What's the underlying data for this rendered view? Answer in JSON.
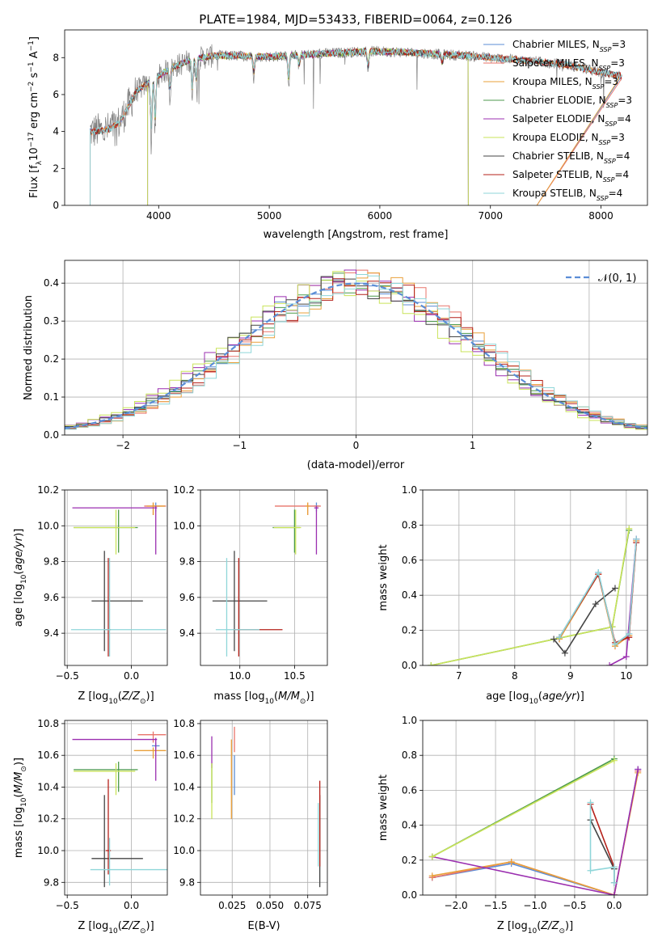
{
  "figure_title": "PLATE=1984, MJD=53433, FIBERID=0064, z=0.126",
  "colors": {
    "Chabrier MILES": "#5b8dd6",
    "Salpeter MILES": "#e8736a",
    "Kroupa MILES": "#e9a03a",
    "Chabrier ELODIE": "#4c9a4c",
    "Salpeter ELODIE": "#9b2fb0",
    "Kroupa ELODIE": "#c9e35a",
    "Chabrier STELIB": "#444444",
    "Salpeter STELIB": "#b5211a",
    "Kroupa STELIB": "#8fd6d9",
    "data": "#808080",
    "gauss": "#5b8dd6"
  },
  "chart_data": [
    {
      "type": "line",
      "title": "PLATE=1984, MJD=53433, FIBERID=0064, z=0.126",
      "xlabel": "wavelength [Angstrom, rest frame]",
      "ylabel": "Flux [f_λ 10^-17 erg cm^-2 s^-1 A^-1]",
      "xlim": [
        3150,
        8420
      ],
      "ylim": [
        0,
        9.5
      ],
      "xticks": [
        "4000",
        "5000",
        "6000",
        "7000",
        "8000"
      ],
      "yticks": [
        "0",
        "2",
        "4",
        "6",
        "8"
      ],
      "legend": [
        {
          "name": "Chabrier MILES",
          "nssp": "3"
        },
        {
          "name": "Salpeter MILES",
          "nssp": "3"
        },
        {
          "name": "Kroupa MILES",
          "nssp": "3"
        },
        {
          "name": "Chabrier ELODIE",
          "nssp": "3"
        },
        {
          "name": "Salpeter ELODIE",
          "nssp": "4"
        },
        {
          "name": "Kroupa ELODIE",
          "nssp": "3"
        },
        {
          "name": "Chabrier STELIB",
          "nssp": "4"
        },
        {
          "name": "Salpeter STELIB",
          "nssp": "4"
        },
        {
          "name": "Kroupa STELIB",
          "nssp": "4"
        }
      ],
      "continuum": {
        "x": [
          3400,
          3550,
          3650,
          3800,
          3950,
          4100,
          4300,
          4500,
          4700,
          5000,
          5300,
          5600,
          5900,
          6200,
          6500,
          6800,
          7100,
          7400,
          7700,
          8000,
          8200
        ],
        "y": [
          4.0,
          4.1,
          4.5,
          6.2,
          6.8,
          7.4,
          7.9,
          8.1,
          8.1,
          8.05,
          8.15,
          8.25,
          8.35,
          8.3,
          8.2,
          8.1,
          7.95,
          7.8,
          7.6,
          7.2,
          7.0
        ]
      },
      "absorption_lines": [
        {
          "x": 3933,
          "depth": 3.5
        },
        {
          "x": 3968,
          "depth": 3.0
        },
        {
          "x": 4102,
          "depth": 1.5
        },
        {
          "x": 4304,
          "depth": 2.2
        },
        {
          "x": 4340,
          "depth": 1.5
        },
        {
          "x": 4861,
          "depth": 1.2
        },
        {
          "x": 5175,
          "depth": 1.8
        },
        {
          "x": 5270,
          "depth": 0.7
        },
        {
          "x": 5893,
          "depth": 1.1
        },
        {
          "x": 6563,
          "depth": 0.6
        }
      ]
    },
    {
      "type": "bar",
      "xlabel": "(data-model)/error",
      "ylabel": "Normed distribution",
      "xlim": [
        -2.5,
        2.5
      ],
      "ylim": [
        0,
        0.46
      ],
      "xticks": [
        "−2",
        "−1",
        "0",
        "1",
        "2"
      ],
      "yticks": [
        "0.0",
        "0.1",
        "0.2",
        "0.3",
        "0.4"
      ],
      "legend_label": "𝒩(0, 1)",
      "bin_width": 0.1,
      "gaussian": {
        "mu": 0,
        "sigma": 1
      }
    },
    {
      "type": "scatter",
      "xlabel": "Z [log10(Z/Z⊙)]",
      "ylabel": "age  [log10(age/yr)]",
      "xlim": [
        -0.52,
        0.28
      ],
      "ylim": [
        9.22,
        10.2
      ],
      "xticks": [
        "−0.5",
        "0.0"
      ],
      "yticks": [
        "9.4",
        "9.6",
        "9.8",
        "10.0",
        "10.2"
      ],
      "points": [
        {
          "model": "Chabrier MILES",
          "x": 0.19,
          "xerr": [
            0.03,
            0.03
          ],
          "y": 10.11,
          "yerr": [
            0.03,
            0.02
          ]
        },
        {
          "model": "Salpeter MILES",
          "x": 0.17,
          "xerr": [
            0.07,
            0.1
          ],
          "y": 10.11,
          "yerr": [
            0.05,
            0.02
          ]
        },
        {
          "model": "Kroupa MILES",
          "x": 0.17,
          "xerr": [
            0.05,
            0.09
          ],
          "y": 10.11,
          "yerr": [
            0.05,
            0.02
          ]
        },
        {
          "model": "Chabrier ELODIE",
          "x": -0.1,
          "xerr": [
            0.35,
            0.15
          ],
          "y": 9.99,
          "yerr": [
            0.14,
            0.1
          ]
        },
        {
          "model": "Salpeter ELODIE",
          "x": 0.19,
          "xerr": [
            0.65,
            0.01
          ],
          "y": 10.1,
          "yerr": [
            0.26,
            0.01
          ]
        },
        {
          "model": "Kroupa ELODIE",
          "x": -0.12,
          "xerr": [
            0.33,
            0.15
          ],
          "y": 9.99,
          "yerr": [
            0.15,
            0.1
          ]
        },
        {
          "model": "Chabrier STELIB",
          "x": -0.21,
          "xerr": [
            0.1,
            0.3
          ],
          "y": 9.58,
          "yerr": [
            0.28,
            0.28
          ]
        },
        {
          "model": "Salpeter STELIB",
          "x": -0.18,
          "xerr": [
            0.02,
            0.02
          ],
          "y": 9.42,
          "yerr": [
            0.15,
            0.4
          ]
        },
        {
          "model": "Kroupa STELIB",
          "x": -0.17,
          "xerr": [
            0.3,
            0.44
          ],
          "y": 9.42,
          "yerr": [
            0.15,
            0.4
          ]
        }
      ]
    },
    {
      "type": "scatter",
      "xlabel": "mass [log10(M/M⊙)]",
      "ylabel": "",
      "xlim": [
        9.64,
        10.8
      ],
      "ylim": [
        9.22,
        10.2
      ],
      "xticks": [
        "10.0",
        "10.5"
      ],
      "yticks": [
        "9.4",
        "9.6",
        "9.8",
        "10.0",
        "10.2"
      ],
      "points": [
        {
          "model": "Chabrier MILES",
          "x": 10.7,
          "xerr": [
            0.02,
            0.02
          ],
          "y": 10.11,
          "yerr": [
            0.03,
            0.02
          ]
        },
        {
          "model": "Salpeter MILES",
          "x": 10.62,
          "xerr": [
            0.3,
            0.12
          ],
          "y": 10.11,
          "yerr": [
            0.05,
            0.02
          ]
        },
        {
          "model": "Kroupa MILES",
          "x": 10.62,
          "xerr": [
            0.02,
            0.02
          ],
          "y": 10.11,
          "yerr": [
            0.05,
            0.02
          ]
        },
        {
          "model": "Chabrier ELODIE",
          "x": 10.5,
          "xerr": [
            0.2,
            0.05
          ],
          "y": 9.99,
          "yerr": [
            0.14,
            0.1
          ]
        },
        {
          "model": "Salpeter ELODIE",
          "x": 10.7,
          "xerr": [
            0.02,
            0.02
          ],
          "y": 10.1,
          "yerr": [
            0.26,
            0.01
          ]
        },
        {
          "model": "Kroupa ELODIE",
          "x": 10.51,
          "xerr": [
            0.2,
            0.05
          ],
          "y": 9.99,
          "yerr": [
            0.15,
            0.1
          ]
        },
        {
          "model": "Chabrier STELIB",
          "x": 9.95,
          "xerr": [
            0.2,
            0.3
          ],
          "y": 9.58,
          "yerr": [
            0.28,
            0.28
          ]
        },
        {
          "model": "Salpeter STELIB",
          "x": 9.99,
          "xerr": [
            0.05,
            0.4
          ],
          "y": 9.42,
          "yerr": [
            0.15,
            0.4
          ]
        },
        {
          "model": "Kroupa STELIB",
          "x": 9.88,
          "xerr": [
            0.1,
            0.3
          ],
          "y": 9.42,
          "yerr": [
            0.15,
            0.4
          ]
        }
      ]
    },
    {
      "type": "line",
      "xlabel": "age  [log10(age/yr)]",
      "ylabel": "mass weight",
      "xlim": [
        6.35,
        10.38
      ],
      "ylim": [
        0,
        1
      ],
      "xticks": [
        "7",
        "8",
        "9",
        "10"
      ],
      "yticks": [
        "0.0",
        "0.2",
        "0.4",
        "0.6",
        "0.8",
        "1.0"
      ],
      "series": [
        {
          "model": "Chabrier MILES",
          "x": [
            8.8,
            9.5,
            9.8,
            10.05,
            10.18
          ],
          "y": [
            0.16,
            0.53,
            0.12,
            0.18,
            0.72
          ]
        },
        {
          "model": "Salpeter MILES",
          "x": [
            8.8,
            9.5,
            9.8,
            10.05,
            10.18
          ],
          "y": [
            0.15,
            0.52,
            0.11,
            0.17,
            0.71
          ]
        },
        {
          "model": "Kroupa MILES",
          "x": [
            8.8,
            9.5,
            9.8,
            10.05,
            10.18
          ],
          "y": [
            0.15,
            0.52,
            0.11,
            0.17,
            0.71
          ]
        },
        {
          "model": "Chabrier ELODIE",
          "x": [
            6.5,
            9.75,
            10.05
          ],
          "y": [
            0.0,
            0.22,
            0.77
          ]
        },
        {
          "model": "Salpeter ELODIE",
          "x": [
            9.7,
            10.0,
            10.18
          ],
          "y": [
            0.0,
            0.05,
            0.72
          ]
        },
        {
          "model": "Kroupa ELODIE",
          "x": [
            6.5,
            9.75,
            10.05
          ],
          "y": [
            0.0,
            0.22,
            0.78
          ]
        },
        {
          "model": "Chabrier STELIB",
          "x": [
            8.7,
            8.9,
            9.45,
            9.8
          ],
          "y": [
            0.15,
            0.07,
            0.35,
            0.44
          ]
        },
        {
          "model": "Salpeter STELIB",
          "x": [
            8.8,
            9.5,
            9.8,
            10.05,
            10.18
          ],
          "y": [
            0.16,
            0.52,
            0.13,
            0.16,
            0.7
          ]
        },
        {
          "model": "Kroupa STELIB",
          "x": [
            8.8,
            9.5,
            9.8,
            10.05,
            10.18
          ],
          "y": [
            0.16,
            0.53,
            0.12,
            0.18,
            0.72
          ]
        }
      ]
    },
    {
      "type": "scatter",
      "xlabel": "Z [log10(Z/Z⊙)]",
      "ylabel": "mass [log10(M/M⊙)]",
      "xlim": [
        -0.52,
        0.28
      ],
      "ylim": [
        9.72,
        10.82
      ],
      "xticks": [
        "−0.5",
        "0.0"
      ],
      "yticks": [
        "9.8",
        "10.0",
        "10.2",
        "10.4",
        "10.6",
        "10.8"
      ],
      "points": [
        {
          "model": "Chabrier MILES",
          "x": 0.19,
          "xerr": [
            0.03,
            0.03
          ],
          "y": 10.66,
          "yerr": [
            0.02,
            0.02
          ]
        },
        {
          "model": "Salpeter MILES",
          "x": 0.17,
          "xerr": [
            0.12,
            0.1
          ],
          "y": 10.73,
          "yerr": [
            0.05,
            0.02
          ]
        },
        {
          "model": "Kroupa MILES",
          "x": 0.17,
          "xerr": [
            0.15,
            0.1
          ],
          "y": 10.63,
          "yerr": [
            0.05,
            0.02
          ]
        },
        {
          "model": "Chabrier ELODIE",
          "x": -0.1,
          "xerr": [
            0.35,
            0.15
          ],
          "y": 10.51,
          "yerr": [
            0.14,
            0.05
          ]
        },
        {
          "model": "Salpeter ELODIE",
          "x": 0.19,
          "xerr": [
            0.65,
            0.01
          ],
          "y": 10.7,
          "yerr": [
            0.26,
            0.01
          ]
        },
        {
          "model": "Kroupa ELODIE",
          "x": -0.12,
          "xerr": [
            0.33,
            0.15
          ],
          "y": 10.5,
          "yerr": [
            0.15,
            0.05
          ]
        },
        {
          "model": "Chabrier STELIB",
          "x": -0.21,
          "xerr": [
            0.1,
            0.3
          ],
          "y": 9.95,
          "yerr": [
            0.18,
            0.4
          ]
        },
        {
          "model": "Salpeter STELIB",
          "x": -0.18,
          "xerr": [
            0.02,
            0.02
          ],
          "y": 10.0,
          "yerr": [
            0.15,
            0.45
          ]
        },
        {
          "model": "Kroupa STELIB",
          "x": -0.17,
          "xerr": [
            0.15,
            0.45
          ],
          "y": 9.88,
          "yerr": [
            0.1,
            0.2
          ]
        }
      ]
    },
    {
      "type": "scatter",
      "xlabel": "E(B-V)",
      "ylabel": "",
      "xlim": [
        0.004,
        0.088
      ],
      "ylim": [
        9.72,
        10.82
      ],
      "xticks": [
        "0.025",
        "0.050",
        "0.075"
      ],
      "yticks": [
        "9.8",
        "10.0",
        "10.2",
        "10.4",
        "10.6",
        "10.8"
      ],
      "points": [
        {
          "model": "Chabrier MILES",
          "x": 0.0265,
          "yerr": [
            0.2,
            0.05
          ],
          "y": 10.55
        },
        {
          "model": "Salpeter MILES",
          "x": 0.0265,
          "yerr": [
            0.08,
            0.08
          ],
          "y": 10.7
        },
        {
          "model": "Kroupa MILES",
          "x": 0.0245,
          "yerr": [
            0.4,
            0.1
          ],
          "y": 10.6
        },
        {
          "model": "Chabrier ELODIE",
          "x": 0.0115,
          "yerr": [
            0.2,
            0.05
          ],
          "y": 10.5
        },
        {
          "model": "Salpeter ELODIE",
          "x": 0.0115,
          "yerr": [
            0.1,
            0.1
          ],
          "y": 10.62
        },
        {
          "model": "Kroupa ELODIE",
          "x": 0.0115,
          "yerr": [
            0.3,
            0.05
          ],
          "y": 10.5
        },
        {
          "model": "Chabrier STELIB",
          "x": 0.083,
          "yerr": [
            0.18,
            0.4
          ],
          "y": 9.95
        },
        {
          "model": "Salpeter STELIB",
          "x": 0.083,
          "yerr": [
            0.1,
            0.44
          ],
          "y": 10.0
        },
        {
          "model": "Kroupa STELIB",
          "x": 0.082,
          "yerr": [
            0.1,
            0.3
          ],
          "y": 10.0
        }
      ]
    },
    {
      "type": "line",
      "xlabel": "Z [log10(Z/Z⊙)]",
      "ylabel": "mass weight",
      "xlim": [
        -2.42,
        0.42
      ],
      "ylim": [
        0,
        1
      ],
      "xticks": [
        "−2.0",
        "−1.5",
        "−1.0",
        "−0.5",
        "0.0"
      ],
      "yticks": [
        "0.0",
        "0.2",
        "0.4",
        "0.6",
        "0.8",
        "1.0"
      ],
      "series": [
        {
          "model": "Chabrier MILES",
          "x": [
            -2.3,
            -1.3,
            0.0,
            0.3
          ],
          "y": [
            0.1,
            0.18,
            0.0,
            0.72
          ]
        },
        {
          "model": "Salpeter MILES",
          "x": [
            -2.3,
            -1.3,
            0.0,
            0.3
          ],
          "y": [
            0.1,
            0.19,
            0.0,
            0.71
          ]
        },
        {
          "model": "Kroupa MILES",
          "x": [
            -2.3,
            -1.3,
            0.0,
            0.3
          ],
          "y": [
            0.11,
            0.19,
            0.0,
            0.7
          ]
        },
        {
          "model": "Chabrier ELODIE",
          "x": [
            -2.3,
            0.0
          ],
          "y": [
            0.22,
            0.78
          ]
        },
        {
          "model": "Salpeter ELODIE",
          "x": [
            -2.3,
            0.0,
            0.3
          ],
          "y": [
            0.22,
            0.0,
            0.72
          ]
        },
        {
          "model": "Kroupa ELODIE",
          "x": [
            -2.3,
            0.0
          ],
          "y": [
            0.22,
            0.77
          ]
        },
        {
          "model": "Chabrier STELIB",
          "x": [
            -0.3,
            0.0,
            0.0
          ],
          "y": [
            0.43,
            0.15,
            0.07
          ]
        },
        {
          "model": "Salpeter STELIB",
          "x": [
            -0.3,
            0.0
          ],
          "y": [
            0.52,
            0.16
          ]
        },
        {
          "model": "Kroupa STELIB",
          "x": [
            -0.3,
            -0.3,
            0.0,
            0.0
          ],
          "y": [
            0.53,
            0.14,
            0.16,
            0.07
          ]
        }
      ]
    }
  ]
}
